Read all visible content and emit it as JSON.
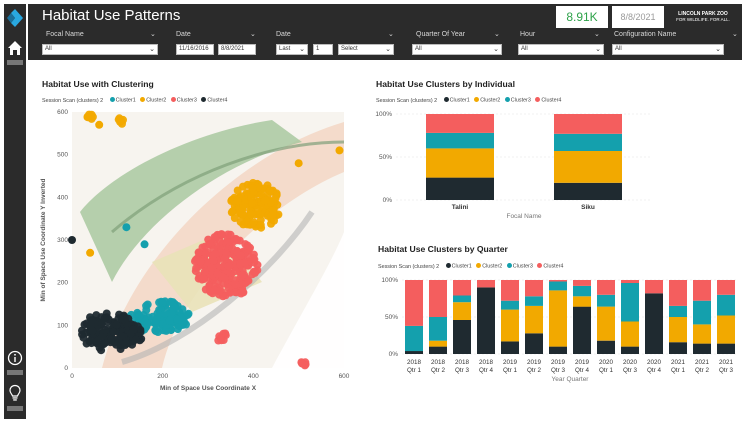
{
  "colors": {
    "cluster1": "#1f2a30",
    "cluster2": "#f2a900",
    "cluster3": "#14a0ad",
    "cluster4": "#f45e5e",
    "accent_green": "#2ea24a",
    "logo": "#29a8e0"
  },
  "header": {
    "title": "Habitat Use Patterns",
    "count": "8.91K",
    "date": "8/8/2021",
    "brand_line1": "LINCOLN PARK ZOO",
    "brand_line2": "FOR WILDLIFE. FOR ALL."
  },
  "filters": {
    "focal_name": {
      "label": "Focal Name",
      "value": "All"
    },
    "date_range": {
      "label": "Date",
      "start": "11/16/2016",
      "end": "8/8/2021"
    },
    "date_relative": {
      "label": "Date",
      "mode": "Last",
      "count": "1",
      "unit": "Select"
    },
    "quarter": {
      "label": "Quarter Of Year",
      "value": "All"
    },
    "hour": {
      "label": "Hour",
      "value": "All"
    },
    "config": {
      "label": "Configuration Name",
      "value": "All"
    }
  },
  "legend": {
    "title": "Session Scan (clusters) 2",
    "items": [
      "Cluster1",
      "Cluster2",
      "Cluster3",
      "Cluster4"
    ]
  },
  "chart_data": [
    {
      "type": "scatter",
      "title": "Habitat Use with Clustering",
      "xlabel": "Min of Space Use Coordinate X",
      "ylabel": "Min of Space Use Coordinate Y Inverted",
      "xlim": [
        0,
        600
      ],
      "ylim": [
        0,
        600
      ],
      "xticks": [
        0,
        200,
        400,
        600
      ],
      "yticks": [
        0,
        100,
        200,
        300,
        400,
        500,
        600
      ],
      "series": [
        {
          "name": "Cluster1",
          "blobs": [
            [
              80,
              85,
              65,
              45
            ],
            [
              130,
              80,
              25,
              30
            ]
          ]
        },
        {
          "name": "Cluster2",
          "blobs": [
            [
              405,
              380,
              55,
              55
            ],
            [
              40,
              590,
              8,
              8
            ],
            [
              110,
              580,
              8,
              8
            ]
          ]
        },
        {
          "name": "Cluster3",
          "blobs": [
            [
              200,
              120,
              60,
              38
            ],
            [
              140,
              100,
              30,
              30
            ]
          ]
        },
        {
          "name": "Cluster4",
          "blobs": [
            [
              340,
              240,
              70,
              75
            ],
            [
              330,
              75,
              12,
              14
            ],
            [
              510,
              10,
              6,
              6
            ]
          ]
        }
      ]
    },
    {
      "type": "bar",
      "stacked": "100%",
      "title": "Habitat Use Clusters by Individual",
      "xlabel": "Focal Name",
      "categories": [
        "Talini",
        "Siku"
      ],
      "yticks": [
        "0%",
        "50%",
        "100%"
      ],
      "series": [
        {
          "name": "Cluster1",
          "values": [
            26,
            20
          ]
        },
        {
          "name": "Cluster2",
          "values": [
            34,
            37
          ]
        },
        {
          "name": "Cluster3",
          "values": [
            18,
            20
          ]
        },
        {
          "name": "Cluster4",
          "values": [
            22,
            23
          ]
        }
      ]
    },
    {
      "type": "bar",
      "stacked": "100%",
      "title": "Habitat Use Clusters by Quarter",
      "xlabel": "Year Quarter",
      "categories": [
        "2018 Qtr 1",
        "2018 Qtr 2",
        "2018 Qtr 3",
        "2018 Qtr 4",
        "2019 Qtr 1",
        "2019 Qtr 2",
        "2019 Qtr 3",
        "2019 Qtr 4",
        "2020 Qtr 1",
        "2020 Qtr 3",
        "2020 Qtr 4",
        "2021 Qtr 1",
        "2021 Qtr 2",
        "2021 Qtr 3"
      ],
      "yticks": [
        "0%",
        "50%",
        "100%"
      ],
      "series": [
        {
          "name": "Cluster1",
          "values": [
            4,
            10,
            46,
            90,
            17,
            28,
            10,
            64,
            18,
            10,
            82,
            16,
            14,
            14
          ]
        },
        {
          "name": "Cluster2",
          "values": [
            0,
            8,
            24,
            0,
            43,
            37,
            76,
            14,
            46,
            34,
            0,
            34,
            26,
            38
          ]
        },
        {
          "name": "Cluster3",
          "values": [
            34,
            32,
            9,
            0,
            12,
            13,
            12,
            14,
            16,
            52,
            0,
            15,
            32,
            28
          ]
        },
        {
          "name": "Cluster4",
          "values": [
            62,
            50,
            21,
            10,
            28,
            22,
            2,
            8,
            20,
            4,
            18,
            35,
            28,
            20
          ]
        }
      ]
    }
  ]
}
